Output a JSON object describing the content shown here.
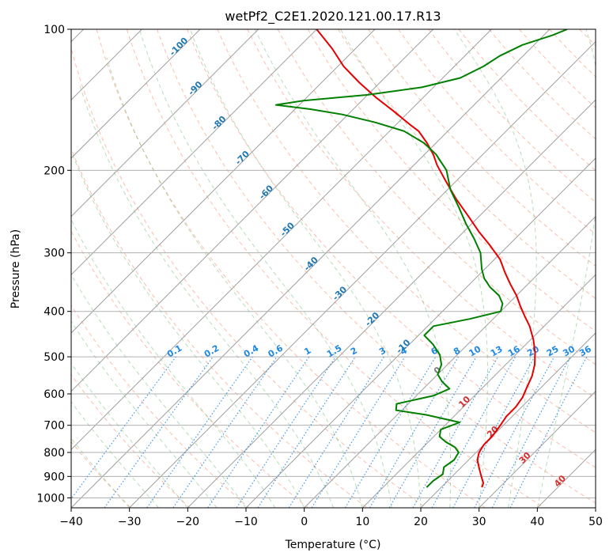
{
  "chart_data": {
    "type": "line",
    "title": "wetPf2_C2E1.2020.121.00.17.R13",
    "xlabel": "Temperature (°C)",
    "ylabel": "Pressure (hPa)",
    "xlim": [
      -40,
      50
    ],
    "ylim": [
      1050,
      100
    ],
    "y_scale": "log",
    "grid": true,
    "x_ticks": [
      -40,
      -30,
      -20,
      -10,
      0,
      10,
      20,
      30,
      40,
      50
    ],
    "y_ticks": [
      100,
      200,
      300,
      400,
      500,
      600,
      700,
      800,
      900,
      1000
    ],
    "series": [
      {
        "color": "#e60000",
        "points": [
          {
            "p": 950,
            "t": 27.0
          },
          {
            "p": 930,
            "t": 26.5
          },
          {
            "p": 900,
            "t": 25.0
          },
          {
            "p": 870,
            "t": 23.5
          },
          {
            "p": 830,
            "t": 21.5
          },
          {
            "p": 800,
            "t": 20.5
          },
          {
            "p": 770,
            "t": 20.0
          },
          {
            "p": 740,
            "t": 20.0
          },
          {
            "p": 700,
            "t": 19.5
          },
          {
            "p": 670,
            "t": 19.0
          },
          {
            "p": 640,
            "t": 19.0
          },
          {
            "p": 610,
            "t": 18.5
          },
          {
            "p": 580,
            "t": 17.5
          },
          {
            "p": 550,
            "t": 16.5
          },
          {
            "p": 520,
            "t": 15.0
          },
          {
            "p": 490,
            "t": 13.0
          },
          {
            "p": 460,
            "t": 10.5
          },
          {
            "p": 430,
            "t": 7.5
          },
          {
            "p": 410,
            "t": 5.0
          },
          {
            "p": 390,
            "t": 2.5
          },
          {
            "p": 370,
            "t": 0.0
          },
          {
            "p": 350,
            "t": -3.0
          },
          {
            "p": 330,
            "t": -6.0
          },
          {
            "p": 310,
            "t": -9.0
          },
          {
            "p": 290,
            "t": -13.0
          },
          {
            "p": 270,
            "t": -17.5
          },
          {
            "p": 250,
            "t": -22.0
          },
          {
            "p": 230,
            "t": -27.0
          },
          {
            "p": 210,
            "t": -32.0
          },
          {
            "p": 195,
            "t": -36.0
          },
          {
            "p": 185,
            "t": -38.5
          },
          {
            "p": 175,
            "t": -41.5
          },
          {
            "p": 165,
            "t": -45.0
          },
          {
            "p": 160,
            "t": -47.5
          },
          {
            "p": 150,
            "t": -52.5
          },
          {
            "p": 140,
            "t": -58.0
          },
          {
            "p": 130,
            "t": -63.5
          },
          {
            "p": 120,
            "t": -69.0
          },
          {
            "p": 110,
            "t": -74.0
          },
          {
            "p": 100,
            "t": -80.0
          }
        ]
      },
      {
        "color": "#008000",
        "points": [
          {
            "p": 950,
            "t": 17.5
          },
          {
            "p": 920,
            "t": 17.5
          },
          {
            "p": 890,
            "t": 18.0
          },
          {
            "p": 860,
            "t": 17.0
          },
          {
            "p": 830,
            "t": 17.5
          },
          {
            "p": 800,
            "t": 17.0
          },
          {
            "p": 780,
            "t": 15.5
          },
          {
            "p": 760,
            "t": 13.0
          },
          {
            "p": 740,
            "t": 11.0
          },
          {
            "p": 715,
            "t": 10.0
          },
          {
            "p": 690,
            "t": 12.0
          },
          {
            "p": 665,
            "t": 5.0
          },
          {
            "p": 650,
            "t": -1.0
          },
          {
            "p": 630,
            "t": -2.0
          },
          {
            "p": 605,
            "t": 3.0
          },
          {
            "p": 585,
            "t": 4.5
          },
          {
            "p": 565,
            "t": 2.0
          },
          {
            "p": 545,
            "t": 0.0
          },
          {
            "p": 520,
            "t": -1.0
          },
          {
            "p": 495,
            "t": -3.0
          },
          {
            "p": 470,
            "t": -6.0
          },
          {
            "p": 450,
            "t": -9.0
          },
          {
            "p": 430,
            "t": -9.0
          },
          {
            "p": 415,
            "t": -4.0
          },
          {
            "p": 400,
            "t": 0.0
          },
          {
            "p": 385,
            "t": -1.0
          },
          {
            "p": 370,
            "t": -3.0
          },
          {
            "p": 355,
            "t": -6.0
          },
          {
            "p": 340,
            "t": -8.5
          },
          {
            "p": 325,
            "t": -10.5
          },
          {
            "p": 300,
            "t": -13.5
          },
          {
            "p": 280,
            "t": -17.0
          },
          {
            "p": 260,
            "t": -21.0
          },
          {
            "p": 240,
            "t": -25.0
          },
          {
            "p": 220,
            "t": -29.5
          },
          {
            "p": 200,
            "t": -33.5
          },
          {
            "p": 185,
            "t": -38.0
          },
          {
            "p": 175,
            "t": -42.0
          },
          {
            "p": 165,
            "t": -47.5
          },
          {
            "p": 158,
            "t": -54.0
          },
          {
            "p": 152,
            "t": -61.0
          },
          {
            "p": 148,
            "t": -67.5
          },
          {
            "p": 145,
            "t": -74.0
          },
          {
            "p": 142,
            "t": -70.0
          },
          {
            "p": 138,
            "t": -60.0
          },
          {
            "p": 133,
            "t": -52.0
          },
          {
            "p": 127,
            "t": -47.0
          },
          {
            "p": 120,
            "t": -45.0
          },
          {
            "p": 114,
            "t": -44.0
          },
          {
            "p": 108,
            "t": -42.0
          },
          {
            "p": 103,
            "t": -38.5
          },
          {
            "p": 100,
            "t": -37.0
          }
        ]
      }
    ],
    "dry_adiabat_labels": [
      "-100",
      "-90",
      "-80",
      "-70",
      "-60",
      "-50",
      "-40",
      "-30",
      "-20",
      "-10",
      "0",
      "10",
      "20",
      "30",
      "40"
    ],
    "mixing_ratio_labels": [
      "0.1",
      "0.2",
      "0.4",
      "0.6",
      "1",
      "1.5",
      "2",
      "3",
      "4",
      "6",
      "8",
      "10",
      "13",
      "16",
      "20",
      "25",
      "30",
      "36"
    ],
    "mixing_ratio_values": [
      0.1,
      0.2,
      0.4,
      0.6,
      1,
      1.5,
      2,
      3,
      4,
      6,
      8,
      10,
      13,
      16,
      20,
      25,
      30,
      36
    ],
    "colors": {
      "temperature": "#e60000",
      "dewpoint": "#008000",
      "dry_adiabat": "#fa8866",
      "moist_adiabat": "#5fb35f",
      "mixing_ratio": "#1e88e5",
      "isotherm": "#a0a0a0",
      "isobar_grid": "#b0b0b0",
      "warm_label": "#d32f2f",
      "cold_label": "#1f77b4"
    }
  }
}
